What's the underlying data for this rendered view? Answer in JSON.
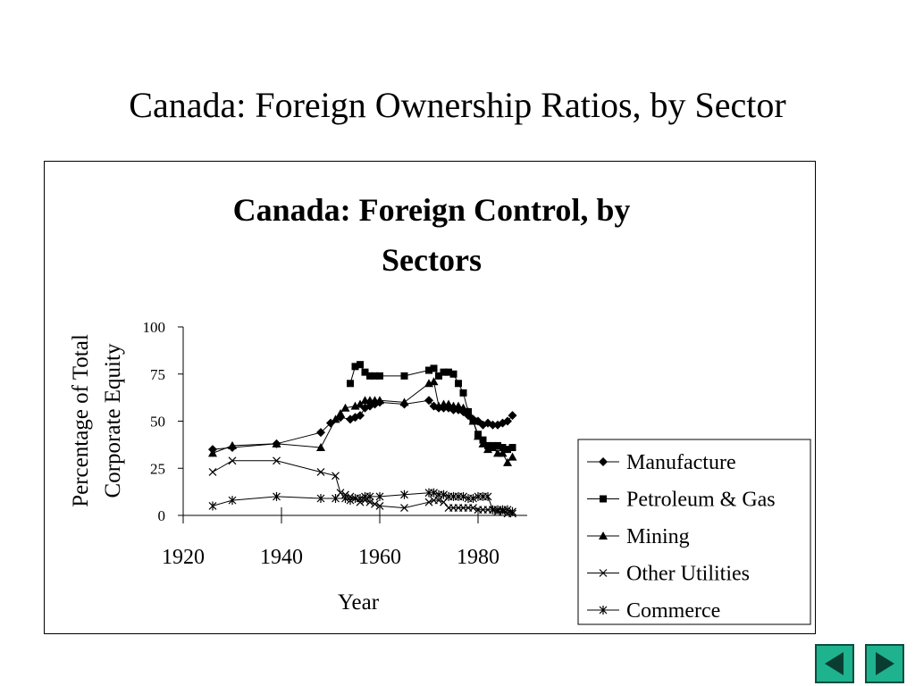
{
  "slide": {
    "title": "Canada: Foreign Ownership Ratios, by  Sector"
  },
  "navigation": {
    "prev_icon": "triangle-left-icon",
    "next_icon": "triangle-right-icon",
    "button_color": "#1fb28e"
  },
  "chart_data": {
    "type": "line",
    "title_lines": [
      "Canada: Foreign Control, by",
      "Sectors"
    ],
    "xlabel": "Year",
    "ylabel_lines": [
      "Percentage of Total",
      "Corporate Equity"
    ],
    "xlim": [
      1920,
      1990
    ],
    "ylim": [
      0,
      100
    ],
    "x_ticks": [
      1920,
      1940,
      1960,
      1980
    ],
    "y_ticks": [
      0,
      25,
      50,
      75,
      100
    ],
    "grid": false,
    "legend_position": "lower-right",
    "series": [
      {
        "name": "Manufacture",
        "marker": "diamond",
        "points": [
          [
            1926,
            35
          ],
          [
            1930,
            36
          ],
          [
            1939,
            38
          ],
          [
            1948,
            44
          ],
          [
            1950,
            49
          ],
          [
            1952,
            52
          ],
          [
            1954,
            51
          ],
          [
            1955,
            52
          ],
          [
            1956,
            53
          ],
          [
            1957,
            57
          ],
          [
            1958,
            58
          ],
          [
            1959,
            59
          ],
          [
            1960,
            60
          ],
          [
            1965,
            59
          ],
          [
            1970,
            61
          ],
          [
            1971,
            58
          ],
          [
            1972,
            57
          ],
          [
            1973,
            57
          ],
          [
            1974,
            57
          ],
          [
            1975,
            56
          ],
          [
            1976,
            56
          ],
          [
            1977,
            55
          ],
          [
            1978,
            53
          ],
          [
            1979,
            51
          ],
          [
            1980,
            50
          ],
          [
            1981,
            48
          ],
          [
            1982,
            49
          ],
          [
            1983,
            48
          ],
          [
            1984,
            48
          ],
          [
            1985,
            49
          ],
          [
            1986,
            50
          ],
          [
            1987,
            53
          ]
        ]
      },
      {
        "name": "Petroleum & Gas",
        "marker": "square",
        "points": [
          [
            1954,
            70
          ],
          [
            1955,
            79
          ],
          [
            1956,
            80
          ],
          [
            1957,
            76
          ],
          [
            1958,
            74
          ],
          [
            1959,
            74
          ],
          [
            1960,
            74
          ],
          [
            1965,
            74
          ],
          [
            1970,
            77
          ],
          [
            1971,
            78
          ],
          [
            1972,
            74
          ],
          [
            1973,
            76
          ],
          [
            1974,
            76
          ],
          [
            1975,
            75
          ],
          [
            1976,
            70
          ],
          [
            1977,
            65
          ],
          [
            1978,
            55
          ],
          [
            1979,
            50
          ],
          [
            1980,
            43
          ],
          [
            1981,
            40
          ],
          [
            1982,
            37
          ],
          [
            1983,
            37
          ],
          [
            1984,
            37
          ],
          [
            1985,
            36
          ],
          [
            1986,
            35
          ],
          [
            1987,
            36
          ]
        ]
      },
      {
        "name": "Mining",
        "marker": "triangle",
        "points": [
          [
            1926,
            33
          ],
          [
            1930,
            37
          ],
          [
            1939,
            38
          ],
          [
            1948,
            36
          ],
          [
            1951,
            51
          ],
          [
            1952,
            54
          ],
          [
            1953,
            57
          ],
          [
            1955,
            58
          ],
          [
            1956,
            59
          ],
          [
            1957,
            61
          ],
          [
            1958,
            61
          ],
          [
            1959,
            61
          ],
          [
            1960,
            61
          ],
          [
            1965,
            60
          ],
          [
            1970,
            70
          ],
          [
            1971,
            71
          ],
          [
            1972,
            58
          ],
          [
            1973,
            59
          ],
          [
            1974,
            59
          ],
          [
            1975,
            58
          ],
          [
            1976,
            58
          ],
          [
            1977,
            57
          ],
          [
            1978,
            55
          ],
          [
            1979,
            50
          ],
          [
            1980,
            42
          ],
          [
            1981,
            38
          ],
          [
            1982,
            35
          ],
          [
            1983,
            36
          ],
          [
            1984,
            33
          ],
          [
            1985,
            33
          ],
          [
            1986,
            28
          ],
          [
            1987,
            31
          ]
        ]
      },
      {
        "name": "Other Utilities",
        "marker": "x",
        "points": [
          [
            1926,
            23
          ],
          [
            1930,
            29
          ],
          [
            1939,
            29
          ],
          [
            1948,
            23
          ],
          [
            1951,
            21
          ],
          [
            1952,
            12
          ],
          [
            1953,
            11
          ],
          [
            1954,
            10
          ],
          [
            1955,
            9
          ],
          [
            1956,
            7
          ],
          [
            1957,
            8
          ],
          [
            1958,
            7
          ],
          [
            1959,
            6
          ],
          [
            1960,
            5
          ],
          [
            1965,
            4
          ],
          [
            1970,
            7
          ],
          [
            1971,
            8
          ],
          [
            1972,
            8
          ],
          [
            1973,
            7
          ],
          [
            1974,
            4
          ],
          [
            1975,
            4
          ],
          [
            1976,
            4
          ],
          [
            1977,
            4
          ],
          [
            1978,
            4
          ],
          [
            1979,
            4
          ],
          [
            1980,
            3
          ],
          [
            1981,
            3
          ],
          [
            1982,
            3
          ],
          [
            1983,
            3
          ],
          [
            1984,
            2
          ],
          [
            1985,
            2
          ],
          [
            1986,
            1
          ],
          [
            1987,
            1
          ]
        ]
      },
      {
        "name": "Commerce",
        "marker": "asterisk",
        "points": [
          [
            1926,
            5
          ],
          [
            1930,
            8
          ],
          [
            1939,
            10
          ],
          [
            1948,
            9
          ],
          [
            1951,
            9
          ],
          [
            1953,
            9
          ],
          [
            1954,
            8
          ],
          [
            1955,
            9
          ],
          [
            1956,
            9
          ],
          [
            1957,
            10
          ],
          [
            1958,
            10
          ],
          [
            1960,
            10
          ],
          [
            1965,
            11
          ],
          [
            1970,
            12
          ],
          [
            1971,
            12
          ],
          [
            1972,
            11
          ],
          [
            1973,
            11
          ],
          [
            1974,
            10
          ],
          [
            1975,
            10
          ],
          [
            1976,
            10
          ],
          [
            1977,
            10
          ],
          [
            1978,
            9
          ],
          [
            1979,
            9
          ],
          [
            1980,
            10
          ],
          [
            1981,
            10
          ],
          [
            1982,
            10
          ],
          [
            1983,
            3
          ],
          [
            1984,
            3
          ],
          [
            1985,
            3
          ],
          [
            1986,
            3
          ],
          [
            1987,
            2
          ]
        ]
      }
    ]
  }
}
